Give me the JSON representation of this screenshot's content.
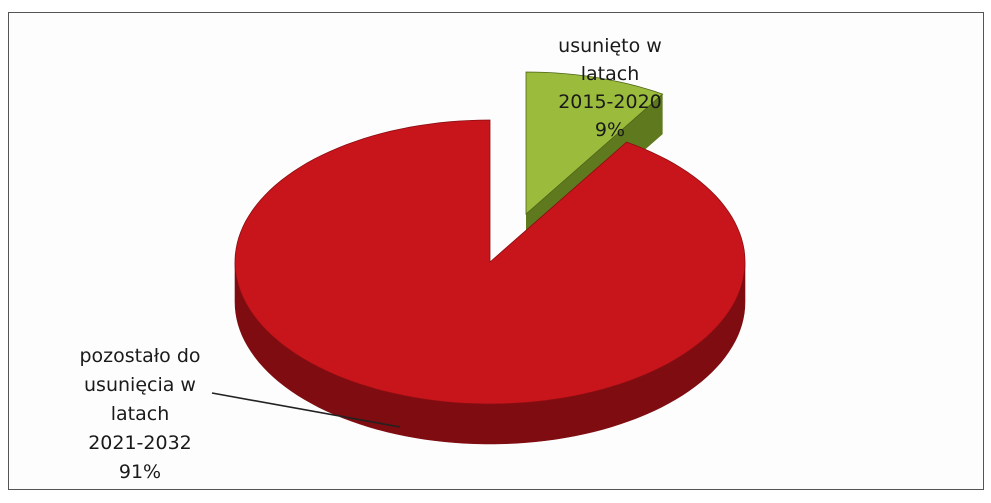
{
  "chart_data": {
    "type": "pie",
    "style": "3d-exploded",
    "slices": [
      {
        "label_lines": [
          "usunięto w",
          "latach",
          "2015-2020",
          "9%"
        ],
        "category": "usunięto w latach 2015-2020",
        "value": 9,
        "color_top": "#9bbb3c",
        "color_side": "#5f7a1e"
      },
      {
        "label_lines": [
          "pozostało do",
          "usunięcia w",
          "latach",
          "2021-2032",
          "91%"
        ],
        "category": "pozostało do usunięcia w latach 2021-2032",
        "value": 91,
        "color_top": "#c8151b",
        "color_side": "#7e0c10"
      }
    ],
    "legend": "none"
  }
}
